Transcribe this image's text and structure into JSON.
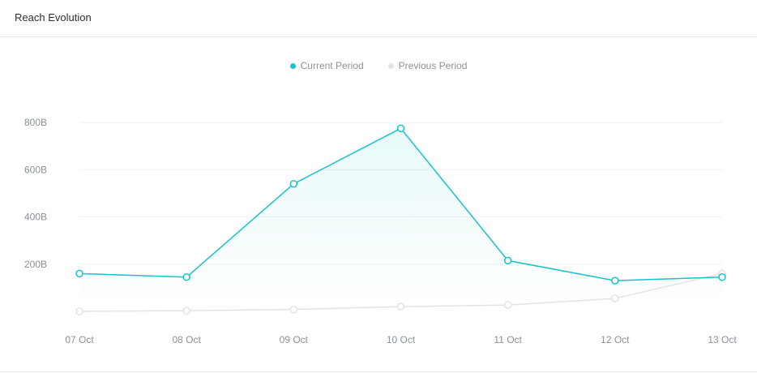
{
  "panel": {
    "title": "Reach Evolution"
  },
  "legend": {
    "items": [
      {
        "label": "Current Period",
        "color": "#18c3c9"
      },
      {
        "label": "Previous Period",
        "color": "#e1e3e6"
      }
    ]
  },
  "chart_data": {
    "type": "line",
    "title": "Reach Evolution",
    "xlabel": "",
    "ylabel": "",
    "x": [
      "07 Oct",
      "08 Oct",
      "09 Oct",
      "10 Oct",
      "11 Oct",
      "12 Oct",
      "13 Oct"
    ],
    "y_ticks": [
      {
        "value": 200,
        "label": "200B"
      },
      {
        "value": 400,
        "label": "400B"
      },
      {
        "value": 600,
        "label": "600B"
      },
      {
        "value": 800,
        "label": "800B"
      }
    ],
    "ylim": [
      0,
      800
    ],
    "grid": true,
    "legend_position": "top-center",
    "series": [
      {
        "name": "Current Period",
        "color": "#18c3c9",
        "values": [
          160,
          145,
          540,
          775,
          215,
          130,
          145
        ],
        "area": true
      },
      {
        "name": "Previous Period",
        "color": "#e1e3e6",
        "values": [
          0,
          3,
          8,
          20,
          27,
          55,
          160
        ],
        "area": false
      }
    ]
  }
}
